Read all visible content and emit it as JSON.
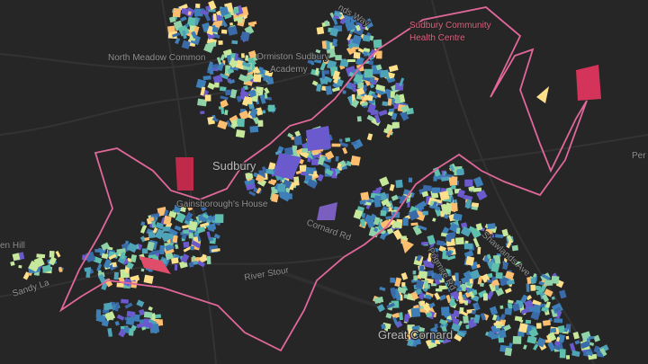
{
  "map": {
    "labels": {
      "north_meadow": "North Meadow Common",
      "academy_1": "Ormiston Sudbury",
      "academy_2": "Academy",
      "health_1": "Sudbury Community",
      "health_2": "Health Centre",
      "top_road": "nds Way",
      "sudbury": "Sudbury",
      "gainsborough": "Gainsborough's House",
      "cornard_road": "Cornard Rd",
      "river": "River Stour",
      "great_cornard": "Great Cornard",
      "left_hill": "en Hill",
      "sandy": "Sandy La",
      "shawlands": "Shawlands Ave",
      "pogmire": "Pogmire Rd",
      "right_edge": "Per"
    }
  }
}
